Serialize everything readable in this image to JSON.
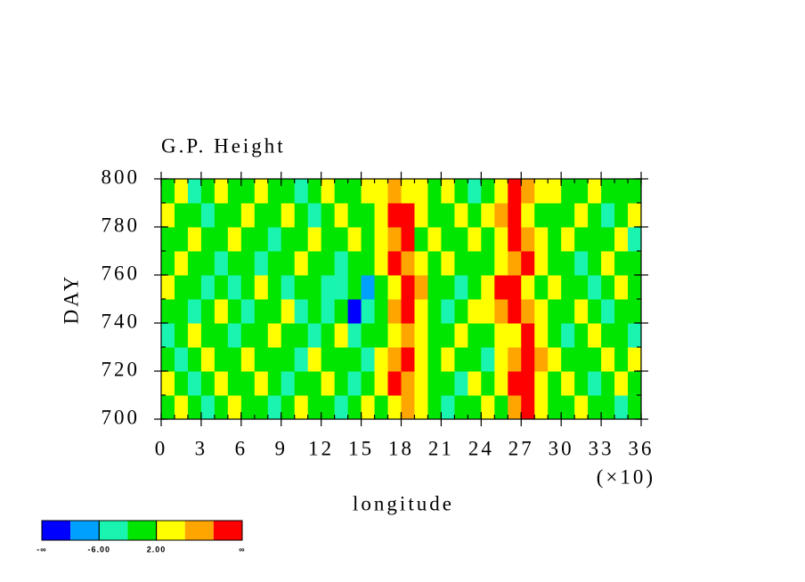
{
  "chart_data": {
    "type": "heatmap",
    "title": "G.P. Height",
    "xlabel": "longitude",
    "ylabel": "DAY",
    "x_multiplier": "(×10)",
    "xlim": [
      0,
      36
    ],
    "xticks": [
      0,
      3,
      6,
      9,
      12,
      15,
      18,
      21,
      24,
      27,
      30,
      33,
      36
    ],
    "x_minor_step": 1,
    "ylim": [
      700,
      800
    ],
    "yticks": [
      700,
      720,
      740,
      760,
      780,
      800
    ],
    "y_minor_step": 10,
    "levels": [
      -10,
      -6,
      -2,
      2,
      6,
      10
    ],
    "colors": [
      "#0000ff",
      "#00a0ff",
      "#19f5b0",
      "#00e600",
      "#ffff00",
      "#ffa500",
      "#ff0000"
    ],
    "colorbar_low_label": "-∞",
    "colorbar_high_label": "∞",
    "colorbar_labels": [
      {
        "value": -6,
        "label": "-6.00"
      },
      {
        "value": 2,
        "label": "2.00"
      }
    ],
    "z": [
      [
        0,
        3,
        0,
        -3,
        0,
        3,
        0,
        0,
        -3,
        0,
        3,
        0,
        0,
        -3,
        0,
        3,
        0,
        3,
        7,
        3,
        0,
        -3,
        0,
        0,
        3,
        0,
        7,
        11,
        3,
        0,
        0,
        3,
        0,
        0,
        -3,
        0
      ],
      [
        3,
        0,
        -3,
        0,
        3,
        0,
        0,
        3,
        0,
        -3,
        0,
        0,
        3,
        0,
        -3,
        0,
        3,
        11,
        7,
        3,
        0,
        0,
        -3,
        3,
        0,
        3,
        11,
        11,
        3,
        0,
        3,
        0,
        -3,
        0,
        3,
        0
      ],
      [
        0,
        -3,
        0,
        3,
        0,
        0,
        3,
        0,
        0,
        0,
        -3,
        3,
        0,
        0,
        0,
        -3,
        3,
        7,
        11,
        3,
        0,
        3,
        0,
        0,
        -3,
        3,
        7,
        11,
        7,
        3,
        0,
        0,
        0,
        3,
        0,
        3
      ],
      [
        -3,
        0,
        3,
        0,
        0,
        -3,
        0,
        0,
        3,
        0,
        0,
        -3,
        0,
        3,
        -3,
        0,
        0,
        3,
        7,
        3,
        0,
        0,
        3,
        0,
        0,
        3,
        3,
        11,
        3,
        0,
        -3,
        0,
        3,
        0,
        0,
        -3
      ],
      [
        0,
        0,
        -3,
        0,
        3,
        0,
        -3,
        0,
        0,
        3,
        -3,
        0,
        -3,
        0,
        -12,
        -3,
        0,
        7,
        11,
        3,
        0,
        -3,
        0,
        3,
        3,
        7,
        11,
        7,
        3,
        0,
        0,
        3,
        0,
        -3,
        0,
        0
      ],
      [
        3,
        0,
        0,
        -3,
        0,
        -3,
        0,
        3,
        0,
        -3,
        0,
        0,
        -3,
        -3,
        0,
        -8,
        0,
        3,
        11,
        7,
        0,
        0,
        -3,
        0,
        3,
        11,
        11,
        3,
        0,
        3,
        0,
        0,
        -3,
        0,
        3,
        0
      ],
      [
        0,
        3,
        0,
        0,
        -3,
        0,
        0,
        -3,
        0,
        0,
        3,
        0,
        0,
        -3,
        0,
        0,
        3,
        11,
        7,
        3,
        0,
        3,
        0,
        0,
        0,
        3,
        7,
        11,
        3,
        0,
        0,
        -3,
        0,
        3,
        0,
        0
      ],
      [
        0,
        0,
        3,
        0,
        0,
        3,
        0,
        0,
        -3,
        0,
        0,
        3,
        0,
        0,
        3,
        0,
        3,
        7,
        11,
        0,
        3,
        0,
        0,
        3,
        0,
        3,
        11,
        7,
        3,
        0,
        3,
        0,
        0,
        0,
        3,
        -3
      ],
      [
        3,
        0,
        0,
        -3,
        0,
        0,
        3,
        0,
        0,
        3,
        0,
        -3,
        0,
        3,
        0,
        0,
        3,
        11,
        11,
        3,
        0,
        0,
        3,
        0,
        3,
        7,
        11,
        3,
        0,
        0,
        0,
        3,
        0,
        -3,
        0,
        3
      ],
      [
        0,
        3,
        -3,
        0,
        3,
        0,
        0,
        3,
        0,
        0,
        -3,
        0,
        3,
        0,
        0,
        3,
        3,
        7,
        3,
        3,
        0,
        3,
        0,
        -3,
        0,
        3,
        11,
        7,
        3,
        3,
        0,
        0,
        3,
        0,
        0,
        0
      ]
    ]
  }
}
